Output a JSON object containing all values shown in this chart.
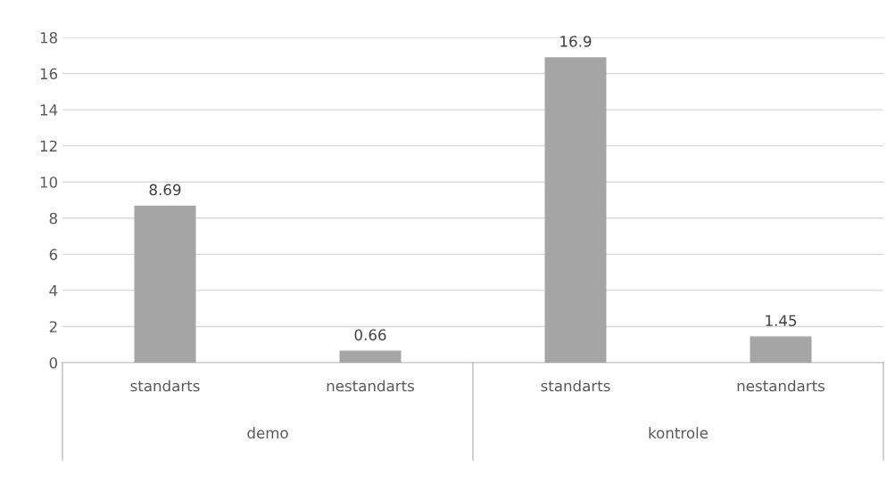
{
  "chart_data": {
    "type": "bar",
    "categories": [
      "standarts",
      "nestandarts",
      "standarts",
      "nestandarts"
    ],
    "values": [
      8.69,
      0.66,
      16.9,
      1.45
    ],
    "color": "#a5a5a5",
    "ylim": [
      0,
      18
    ],
    "yticks": [
      0,
      2,
      4,
      6,
      8,
      10,
      12,
      14,
      16,
      18
    ],
    "grid": "y",
    "data_labels": true,
    "annotations": [
      "demo",
      "kontrole"
    ]
  }
}
